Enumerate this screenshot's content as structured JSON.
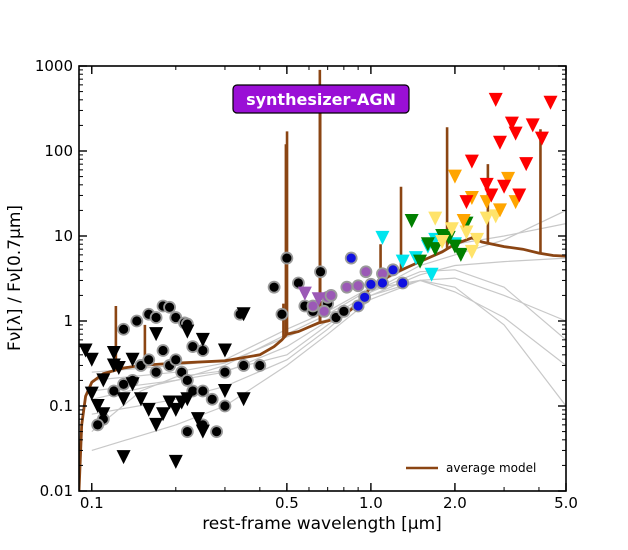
{
  "chart_data": {
    "type": "scatter",
    "title": "synthesizer-AGN",
    "title_box_color": "#9a0fd6",
    "xlabel": "rest-frame wavelength [μm]",
    "ylabel": "Fν[λ] / Fν[0.7μm]",
    "xscale": "log",
    "yscale": "log",
    "xlim": [
      0.09,
      5.0
    ],
    "ylim": [
      0.01,
      1000
    ],
    "xticks": [
      {
        "value": 0.1,
        "label": "0.1"
      },
      {
        "value": 0.5,
        "label": "0.5"
      },
      {
        "value": 1.0,
        "label": "1.0"
      },
      {
        "value": 2.0,
        "label": "2.0"
      },
      {
        "value": 5.0,
        "label": "5.0"
      }
    ],
    "yticks": [
      {
        "value": 0.01,
        "label": "0.01"
      },
      {
        "value": 0.1,
        "label": "0.1"
      },
      {
        "value": 1,
        "label": "1"
      },
      {
        "value": 10,
        "label": "10"
      },
      {
        "value": 100,
        "label": "100"
      },
      {
        "value": 1000,
        "label": "1000"
      }
    ],
    "legend": {
      "position": "bottom-right",
      "entries": [
        {
          "label": "average model",
          "color": "#8b4513"
        }
      ]
    },
    "average_model": {
      "name": "average model",
      "color": "#8b4513",
      "continuum": [
        [
          0.09,
          0.01
        ],
        [
          0.092,
          0.06
        ],
        [
          0.095,
          0.13
        ],
        [
          0.1,
          0.19
        ],
        [
          0.11,
          0.24
        ],
        [
          0.12,
          0.26
        ],
        [
          0.13,
          0.28
        ],
        [
          0.15,
          0.3
        ],
        [
          0.2,
          0.32
        ],
        [
          0.3,
          0.34
        ],
        [
          0.4,
          0.4
        ],
        [
          0.45,
          0.5
        ],
        [
          0.48,
          0.6
        ],
        [
          0.5,
          0.7
        ],
        [
          0.55,
          0.75
        ],
        [
          0.6,
          0.85
        ],
        [
          0.65,
          0.95
        ],
        [
          0.7,
          1.0
        ],
        [
          0.8,
          1.15
        ],
        [
          0.9,
          1.6
        ],
        [
          1.0,
          2.5
        ],
        [
          1.2,
          3.6
        ],
        [
          1.5,
          5.0
        ],
        [
          1.8,
          6.5
        ],
        [
          2.0,
          8.0
        ],
        [
          2.3,
          9.5
        ],
        [
          2.5,
          8.5
        ],
        [
          3.0,
          7.5
        ],
        [
          3.5,
          7.0
        ],
        [
          4.0,
          6.3
        ],
        [
          4.5,
          5.9
        ],
        [
          5.0,
          5.8
        ]
      ],
      "emission_lines": [
        [
          0.122,
          1.5
        ],
        [
          0.155,
          0.9
        ],
        [
          0.486,
          1.6
        ],
        [
          0.496,
          120
        ],
        [
          0.5007,
          170
        ],
        [
          0.6563,
          900
        ],
        [
          0.6583,
          300
        ],
        [
          0.9532,
          2.0
        ],
        [
          1.083,
          8
        ],
        [
          1.282,
          38
        ],
        [
          1.875,
          190
        ],
        [
          2.625,
          70
        ],
        [
          4.05,
          180
        ]
      ]
    },
    "grey_templates": [
      [
        [
          0.1,
          0.05
        ],
        [
          0.15,
          0.15
        ],
        [
          0.2,
          0.22
        ],
        [
          0.3,
          0.26
        ],
        [
          0.5,
          0.4
        ],
        [
          0.7,
          0.9
        ],
        [
          1.0,
          2.0
        ],
        [
          1.5,
          3.5
        ],
        [
          2.0,
          4.5
        ],
        [
          3.0,
          5.0
        ],
        [
          5.0,
          5.5
        ]
      ],
      [
        [
          0.1,
          0.25
        ],
        [
          0.2,
          0.3
        ],
        [
          0.3,
          0.35
        ],
        [
          0.5,
          0.8
        ],
        [
          0.7,
          1.3
        ],
        [
          1.0,
          2.5
        ],
        [
          1.5,
          5.0
        ],
        [
          2.0,
          8.0
        ],
        [
          3.0,
          10
        ],
        [
          5.0,
          14
        ]
      ],
      [
        [
          0.1,
          0.08
        ],
        [
          0.2,
          0.12
        ],
        [
          0.3,
          0.17
        ],
        [
          0.5,
          0.35
        ],
        [
          0.7,
          0.8
        ],
        [
          1.0,
          2.2
        ],
        [
          1.5,
          4.5
        ],
        [
          2.0,
          6.0
        ],
        [
          3.0,
          9.0
        ],
        [
          5.0,
          20
        ]
      ],
      [
        [
          0.1,
          0.03
        ],
        [
          0.2,
          0.06
        ],
        [
          0.3,
          0.1
        ],
        [
          0.5,
          0.3
        ],
        [
          0.7,
          0.7
        ],
        [
          1.0,
          1.8
        ],
        [
          1.5,
          3.0
        ],
        [
          2.0,
          3.2
        ],
        [
          3.0,
          2.0
        ],
        [
          5.0,
          1.0
        ]
      ],
      [
        [
          0.1,
          0.15
        ],
        [
          0.2,
          0.2
        ],
        [
          0.3,
          0.25
        ],
        [
          0.5,
          0.5
        ],
        [
          0.7,
          1.0
        ],
        [
          1.0,
          2.0
        ],
        [
          1.5,
          3.0
        ],
        [
          2.0,
          2.5
        ],
        [
          3.0,
          0.9
        ],
        [
          5.0,
          0.1
        ]
      ],
      [
        [
          0.1,
          0.2
        ],
        [
          0.2,
          0.25
        ],
        [
          0.3,
          0.32
        ],
        [
          0.5,
          0.65
        ],
        [
          0.7,
          1.05
        ],
        [
          1.0,
          2.2
        ],
        [
          1.5,
          3.8
        ],
        [
          2.0,
          4.0
        ],
        [
          3.0,
          2.5
        ],
        [
          5.0,
          0.6
        ]
      ],
      [
        [
          0.1,
          0.12
        ],
        [
          0.2,
          0.2
        ],
        [
          0.3,
          0.3
        ],
        [
          0.5,
          0.7
        ],
        [
          0.7,
          1.2
        ],
        [
          1.0,
          2.4
        ],
        [
          1.5,
          3.0
        ],
        [
          2.0,
          2.2
        ],
        [
          3.0,
          1.1
        ],
        [
          5.0,
          0.3
        ]
      ]
    ],
    "series": [
      {
        "name": "detections (UV/optical)",
        "marker": "circle",
        "color": "#000000",
        "points": [
          [
            0.16,
            1.2
          ],
          [
            0.17,
            1.1
          ],
          [
            0.18,
            1.5
          ],
          [
            0.19,
            1.45
          ],
          [
            0.2,
            1.1
          ],
          [
            0.215,
            0.95
          ],
          [
            0.22,
            0.92
          ],
          [
            0.23,
            0.5
          ],
          [
            0.25,
            0.45
          ],
          [
            0.18,
            0.45
          ],
          [
            0.19,
            0.3
          ],
          [
            0.2,
            0.35
          ],
          [
            0.21,
            0.25
          ],
          [
            0.22,
            0.2
          ],
          [
            0.23,
            0.15
          ],
          [
            0.25,
            0.15
          ],
          [
            0.27,
            0.12
          ],
          [
            0.3,
            0.1
          ],
          [
            0.15,
            0.3
          ],
          [
            0.16,
            0.35
          ],
          [
            0.17,
            0.25
          ],
          [
            0.14,
            0.2
          ],
          [
            0.13,
            0.18
          ],
          [
            0.12,
            0.15
          ],
          [
            0.11,
            0.07
          ],
          [
            0.105,
            0.06
          ],
          [
            0.13,
            0.8
          ],
          [
            0.145,
            1.0
          ],
          [
            0.34,
            1.2
          ],
          [
            0.22,
            0.05
          ],
          [
            0.25,
            0.06
          ],
          [
            0.28,
            0.05
          ],
          [
            0.3,
            0.25
          ],
          [
            0.35,
            0.3
          ],
          [
            0.4,
            0.3
          ],
          [
            0.45,
            2.5
          ],
          [
            0.48,
            1.2
          ],
          [
            0.5,
            5.5
          ],
          [
            0.55,
            2.8
          ],
          [
            0.58,
            1.5
          ],
          [
            0.62,
            1.3
          ],
          [
            0.66,
            3.8
          ],
          [
            0.7,
            1.6
          ],
          [
            0.75,
            1.1
          ],
          [
            0.8,
            1.3
          ]
        ]
      },
      {
        "name": "upper limits (UV/optical)",
        "marker": "triangle-down",
        "color": "#000000",
        "points": [
          [
            0.095,
            0.45
          ],
          [
            0.1,
            0.35
          ],
          [
            0.1,
            0.14
          ],
          [
            0.105,
            0.1
          ],
          [
            0.11,
            0.08
          ],
          [
            0.12,
            0.42
          ],
          [
            0.125,
            0.28
          ],
          [
            0.13,
            0.12
          ],
          [
            0.14,
            0.18
          ],
          [
            0.15,
            0.12
          ],
          [
            0.16,
            0.09
          ],
          [
            0.17,
            0.06
          ],
          [
            0.18,
            0.08
          ],
          [
            0.19,
            0.11
          ],
          [
            0.2,
            0.09
          ],
          [
            0.21,
            0.11
          ],
          [
            0.22,
            0.12
          ],
          [
            0.24,
            0.07
          ],
          [
            0.25,
            0.05
          ],
          [
            0.3,
            0.15
          ],
          [
            0.35,
            1.2
          ],
          [
            0.13,
            0.025
          ],
          [
            0.2,
            0.022
          ],
          [
            0.22,
            0.75
          ],
          [
            0.25,
            0.6
          ],
          [
            0.11,
            0.2
          ],
          [
            0.12,
            0.3
          ],
          [
            0.14,
            0.35
          ],
          [
            0.3,
            0.45
          ],
          [
            0.17,
            0.7
          ],
          [
            0.35,
            0.12
          ]
        ]
      },
      {
        "name": "purple detections",
        "marker": "circle",
        "color": "#9b59b6",
        "points": [
          [
            0.62,
            1.5
          ],
          [
            0.7,
            1.9
          ],
          [
            0.72,
            2.0
          ],
          [
            0.82,
            2.5
          ],
          [
            0.9,
            2.6
          ],
          [
            0.96,
            3.8
          ],
          [
            1.1,
            3.6
          ],
          [
            0.68,
            1.3
          ]
        ]
      },
      {
        "name": "purple upper limits",
        "marker": "triangle-down",
        "color": "#9b59b6",
        "points": [
          [
            0.58,
            2.1
          ],
          [
            0.65,
            1.8
          ]
        ]
      },
      {
        "name": "blue detections",
        "marker": "circle",
        "color": "#1010e0",
        "points": [
          [
            0.85,
            5.5
          ],
          [
            0.95,
            1.9
          ],
          [
            1.0,
            2.7
          ],
          [
            1.1,
            2.8
          ],
          [
            1.3,
            2.8
          ],
          [
            1.2,
            4.0
          ],
          [
            0.9,
            1.5
          ]
        ]
      },
      {
        "name": "cyan upper limits",
        "marker": "triangle-down",
        "color": "#00e5ee",
        "points": [
          [
            1.1,
            9.5
          ],
          [
            1.3,
            5.0
          ],
          [
            1.45,
            5.5
          ],
          [
            1.65,
            3.5
          ],
          [
            1.7,
            9.0
          ],
          [
            2.0,
            8.0
          ],
          [
            1.6,
            7.5
          ]
        ]
      },
      {
        "name": "green upper limits",
        "marker": "triangle-down",
        "color": "#008000",
        "points": [
          [
            1.4,
            15
          ],
          [
            1.6,
            8.0
          ],
          [
            1.7,
            7.0
          ],
          [
            1.8,
            10
          ],
          [
            2.0,
            7.5
          ],
          [
            2.1,
            6.0
          ],
          [
            2.2,
            14
          ],
          [
            1.5,
            5.0
          ],
          [
            1.9,
            9.5
          ]
        ]
      },
      {
        "name": "yellow upper limits",
        "marker": "triangle-down",
        "color": "#ffe36a",
        "points": [
          [
            1.7,
            16
          ],
          [
            1.95,
            12
          ],
          [
            2.2,
            11
          ],
          [
            2.4,
            9.0
          ],
          [
            2.6,
            16
          ],
          [
            2.8,
            17
          ],
          [
            1.8,
            8.5
          ],
          [
            2.3,
            6.5
          ]
        ]
      },
      {
        "name": "orange upper limits",
        "marker": "triangle-down",
        "color": "#ffa500",
        "points": [
          [
            2.0,
            50
          ],
          [
            2.15,
            15
          ],
          [
            2.3,
            28
          ],
          [
            2.6,
            25
          ],
          [
            2.9,
            20
          ],
          [
            3.1,
            47
          ],
          [
            3.3,
            25
          ]
        ]
      },
      {
        "name": "red upper limits",
        "marker": "triangle-down",
        "color": "#ff0000",
        "points": [
          [
            2.3,
            75
          ],
          [
            2.6,
            40
          ],
          [
            2.7,
            30
          ],
          [
            2.9,
            125
          ],
          [
            3.0,
            38
          ],
          [
            3.2,
            210
          ],
          [
            3.3,
            160
          ],
          [
            3.4,
            30
          ],
          [
            3.6,
            70
          ],
          [
            3.8,
            200
          ],
          [
            4.1,
            140
          ],
          [
            4.4,
            370
          ],
          [
            2.8,
            400
          ],
          [
            2.2,
            25
          ]
        ]
      }
    ]
  }
}
